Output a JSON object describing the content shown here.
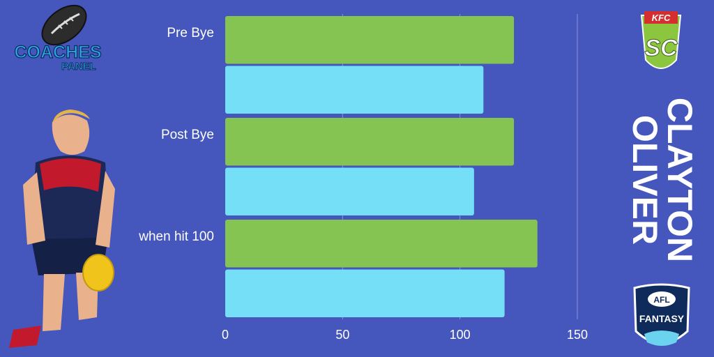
{
  "player": {
    "first_name": "CLAYTON",
    "last_name": "OLIVER"
  },
  "logos": {
    "coaches_line1": "COACHES",
    "coaches_line2": "PANEL",
    "sc_letters": "SC",
    "sc_banner": "KFC",
    "afl_top": "AFL",
    "afl_bottom": "FANTASY"
  },
  "colors": {
    "background": "#4556bd",
    "series_green": "#85c452",
    "series_blue": "#75dff7",
    "grid": "#8a94d8"
  },
  "chart_data": {
    "type": "bar",
    "orientation": "horizontal",
    "categories": [
      "Pre Bye",
      "Post Bye",
      "when hit 100"
    ],
    "series": [
      {
        "values": [
          123,
          123,
          133
        ],
        "color": "#85c452"
      },
      {
        "values": [
          110,
          106,
          119
        ],
        "color": "#75dff7"
      }
    ],
    "xlim": [
      0,
      150
    ],
    "xticks": [
      0,
      50,
      100,
      150
    ],
    "grid": true
  }
}
